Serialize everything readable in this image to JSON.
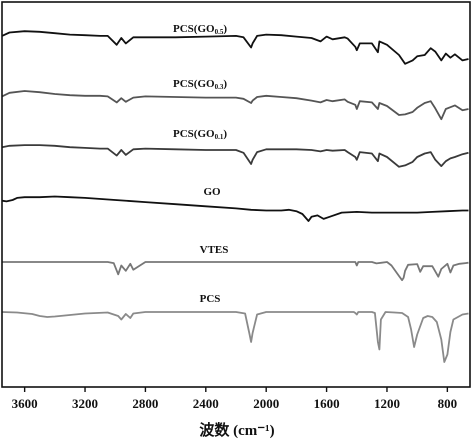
{
  "chart_data": {
    "type": "line",
    "xlabel": "波数 (cm⁻¹)",
    "xlim": [
      3750,
      650
    ],
    "x_reversed": true,
    "xticks": [
      3600,
      3200,
      2800,
      2400,
      2000,
      1600,
      1200,
      800
    ],
    "yticks_shown": false,
    "series": [
      {
        "name": "PCS(GO0.5)",
        "label": {
          "main": "PCS(GO",
          "sub": "0.5",
          "close": ")"
        },
        "color": "#111111",
        "x": [
          3750,
          3700,
          3600,
          3500,
          3400,
          3300,
          3200,
          3100,
          3050,
          2990,
          2960,
          2930,
          2880,
          2800,
          2600,
          2400,
          2200,
          2150,
          2100,
          2090,
          2060,
          2000,
          1900,
          1800,
          1700,
          1640,
          1600,
          1560,
          1480,
          1460,
          1410,
          1400,
          1380,
          1300,
          1260,
          1250,
          1200,
          1120,
          1080,
          1030,
          1000,
          950,
          910,
          880,
          840,
          810,
          780,
          750,
          700,
          660
        ],
        "y": [
          -0.06,
          -0.11,
          -0.13,
          -0.12,
          -0.1,
          -0.08,
          -0.07,
          -0.06,
          -0.06,
          0.07,
          -0.03,
          0.05,
          -0.04,
          -0.04,
          -0.04,
          -0.05,
          -0.06,
          -0.04,
          0.11,
          0.05,
          -0.06,
          -0.08,
          -0.07,
          -0.05,
          -0.03,
          0.02,
          -0.05,
          -0.01,
          -0.04,
          -0.02,
          0.1,
          0.15,
          0.05,
          0.05,
          0.18,
          0.02,
          0.07,
          0.22,
          0.35,
          0.3,
          0.24,
          0.22,
          0.12,
          0.17,
          0.3,
          0.2,
          0.26,
          0.21,
          0.3,
          0.28
        ]
      },
      {
        "name": "PCS(GO0.3)",
        "label": {
          "main": "PCS(GO",
          "sub": "0.3",
          "close": ")"
        },
        "color": "#555555",
        "x": [
          3750,
          3700,
          3600,
          3500,
          3400,
          3300,
          3200,
          3100,
          3050,
          2990,
          2960,
          2930,
          2880,
          2800,
          2600,
          2400,
          2200,
          2150,
          2100,
          2090,
          2060,
          2000,
          1900,
          1800,
          1700,
          1640,
          1600,
          1560,
          1480,
          1460,
          1410,
          1400,
          1380,
          1300,
          1260,
          1250,
          1200,
          1120,
          1080,
          1030,
          1000,
          950,
          910,
          880,
          840,
          810,
          780,
          750,
          700,
          660
        ],
        "y": [
          -0.06,
          -0.12,
          -0.15,
          -0.13,
          -0.1,
          -0.08,
          -0.07,
          -0.07,
          -0.06,
          0.04,
          -0.03,
          0.03,
          -0.04,
          -0.06,
          -0.05,
          -0.04,
          -0.04,
          -0.02,
          0.05,
          0.01,
          -0.05,
          -0.07,
          -0.05,
          -0.03,
          0.01,
          0.04,
          0.0,
          0.02,
          -0.01,
          0.03,
          0.08,
          0.15,
          0.02,
          0.04,
          0.15,
          0.05,
          0.1,
          0.25,
          0.24,
          0.2,
          0.13,
          0.05,
          0.02,
          0.14,
          0.32,
          0.15,
          0.12,
          0.09,
          0.17,
          0.15
        ]
      },
      {
        "name": "PCS(GO0.1)",
        "label": {
          "main": "PCS(GO",
          "sub": "0.1",
          "close": ")"
        },
        "color": "#3a3a3a",
        "x": [
          3750,
          3700,
          3600,
          3500,
          3400,
          3300,
          3200,
          3100,
          3050,
          2990,
          2960,
          2930,
          2880,
          2800,
          2600,
          2400,
          2200,
          2150,
          2100,
          2090,
          2060,
          2000,
          1900,
          1800,
          1700,
          1640,
          1600,
          1560,
          1480,
          1460,
          1410,
          1400,
          1380,
          1300,
          1260,
          1250,
          1200,
          1120,
          1080,
          1030,
          1000,
          950,
          910,
          880,
          840,
          810,
          780,
          750,
          700,
          660
        ],
        "y": [
          -0.04,
          -0.06,
          -0.07,
          -0.07,
          -0.06,
          -0.04,
          -0.03,
          -0.02,
          -0.02,
          0.08,
          0.0,
          0.07,
          -0.01,
          -0.02,
          -0.01,
          0.0,
          0.0,
          0.04,
          0.2,
          0.14,
          0.03,
          -0.01,
          -0.01,
          -0.01,
          0.0,
          0.02,
          0.0,
          0.01,
          0.0,
          0.03,
          0.1,
          0.14,
          0.03,
          0.05,
          0.16,
          0.05,
          0.1,
          0.24,
          0.22,
          0.17,
          0.1,
          0.05,
          0.03,
          0.14,
          0.23,
          0.16,
          0.12,
          0.1,
          0.06,
          0.04
        ]
      },
      {
        "name": "GO",
        "label": {
          "main": "GO",
          "sub": "",
          "close": ""
        },
        "color": "#111111",
        "x": [
          3750,
          3720,
          3680,
          3650,
          3600,
          3500,
          3400,
          3300,
          3200,
          3000,
          2800,
          2600,
          2400,
          2200,
          2100,
          2000,
          1900,
          1850,
          1800,
          1760,
          1720,
          1700,
          1660,
          1620,
          1580,
          1500,
          1400,
          1300,
          1200,
          1100,
          1000,
          900,
          800,
          700,
          660
        ],
        "y": [
          0.01,
          0.02,
          0.0,
          -0.03,
          -0.04,
          -0.04,
          -0.05,
          -0.04,
          -0.03,
          0.0,
          0.03,
          0.06,
          0.09,
          0.12,
          0.14,
          0.15,
          0.15,
          0.14,
          0.16,
          0.2,
          0.3,
          0.24,
          0.22,
          0.27,
          0.24,
          0.18,
          0.17,
          0.18,
          0.18,
          0.18,
          0.18,
          0.17,
          0.16,
          0.15,
          0.15
        ]
      },
      {
        "name": "VTES",
        "label": {
          "main": "VTES",
          "sub": "",
          "close": ""
        },
        "color": "#777777",
        "x": [
          3750,
          3600,
          3400,
          3200,
          3050,
          3010,
          2980,
          2960,
          2930,
          2900,
          2880,
          2800,
          2400,
          2000,
          1600,
          1410,
          1400,
          1390,
          1300,
          1270,
          1200,
          1170,
          1120,
          1100,
          1090,
          1080,
          1060,
          1000,
          980,
          960,
          900,
          860,
          840,
          800,
          780,
          760,
          720,
          680,
          660
        ],
        "y": [
          0.0,
          0.0,
          0.0,
          0.0,
          0.0,
          0.03,
          0.35,
          0.1,
          0.25,
          0.05,
          0.22,
          0.0,
          0.0,
          0.0,
          0.0,
          0.0,
          0.1,
          0.0,
          0.0,
          0.04,
          0.0,
          0.1,
          0.4,
          0.52,
          0.45,
          0.25,
          0.08,
          0.06,
          0.28,
          0.12,
          0.12,
          0.42,
          0.2,
          0.05,
          0.3,
          0.1,
          0.05,
          0.03,
          0.02
        ]
      },
      {
        "name": "PCS",
        "label": {
          "main": "PCS",
          "sub": "",
          "close": ""
        },
        "color": "#8a8a8a",
        "x": [
          3750,
          3650,
          3550,
          3500,
          3450,
          3400,
          3300,
          3200,
          3050,
          2980,
          2960,
          2930,
          2900,
          2880,
          2800,
          2400,
          2200,
          2140,
          2110,
          2100,
          2090,
          2060,
          2000,
          1600,
          1420,
          1410,
          1400,
          1390,
          1300,
          1280,
          1260,
          1250,
          1240,
          1210,
          1150,
          1100,
          1060,
          1040,
          1020,
          1000,
          960,
          930,
          900,
          870,
          840,
          820,
          800,
          780,
          760,
          700,
          660
        ],
        "y": [
          0.0,
          0.01,
          0.04,
          0.08,
          0.1,
          0.09,
          0.06,
          0.03,
          0.01,
          0.08,
          0.15,
          0.04,
          0.12,
          0.03,
          0.0,
          0.0,
          0.0,
          0.03,
          0.45,
          0.6,
          0.42,
          0.05,
          0.0,
          0.0,
          0.0,
          0.02,
          0.05,
          0.0,
          0.0,
          0.02,
          0.6,
          0.75,
          0.15,
          0.0,
          0.01,
          0.02,
          0.1,
          0.35,
          0.7,
          0.45,
          0.12,
          0.08,
          0.1,
          0.2,
          0.55,
          1.0,
          0.85,
          0.4,
          0.15,
          0.05,
          0.03
        ]
      }
    ]
  }
}
